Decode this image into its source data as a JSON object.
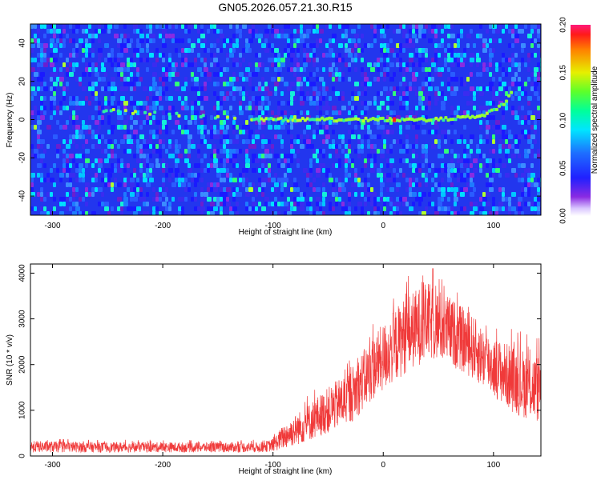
{
  "title": "GN05.2026.057.21.30.R15",
  "colors": {
    "snr_line": "#f03a3a",
    "ridge": "#8cff3a",
    "frame": "#000000"
  },
  "chart_data": [
    {
      "type": "heatmap",
      "name": "spectrogram",
      "xlabel": "Height of straight line (km)",
      "ylabel": "Frequency (Hz)",
      "xlim": [
        -320,
        143
      ],
      "ylim": [
        -50,
        50
      ],
      "xticks": [
        -300,
        -200,
        -100,
        0,
        100
      ],
      "yticks": [
        -40,
        -20,
        0,
        20,
        40
      ],
      "colorbar": {
        "label": "Normalized spectral amplitude",
        "range": [
          0,
          0.2
        ],
        "ticks": [
          "0.00",
          "0.05",
          "0.10",
          "0.15",
          "0.20"
        ]
      },
      "ridge": {
        "description_values_x": [
          -260,
          -200,
          -150,
          -100,
          -50,
          0,
          50,
          90,
          110,
          118
        ],
        "description_values_y": [
          5,
          3,
          1,
          0,
          0,
          0,
          0,
          2,
          8,
          16
        ]
      }
    },
    {
      "type": "line",
      "name": "snr",
      "xlabel": "Height of straight line (km)",
      "ylabel": "SNR (10 * v/v)",
      "xlim": [
        -320,
        143
      ],
      "ylim": [
        0,
        4200
      ],
      "xticks": [
        -300,
        -200,
        -100,
        0,
        100
      ],
      "yticks": [
        0,
        1000,
        2000,
        3000,
        4000
      ],
      "envelope": {
        "x": [
          -320,
          -250,
          -150,
          -110,
          -100,
          -90,
          -70,
          -50,
          -30,
          -10,
          0,
          20,
          40,
          60,
          80,
          100,
          120,
          143
        ],
        "lower": [
          80,
          80,
          80,
          80,
          100,
          150,
          300,
          500,
          700,
          1200,
          1400,
          1800,
          2100,
          2000,
          1700,
          1300,
          900,
          700
        ],
        "upper": [
          330,
          300,
          300,
          300,
          380,
          700,
          1100,
          1500,
          1900,
          2600,
          2900,
          3500,
          3800,
          3500,
          3100,
          2600,
          2400,
          2200
        ],
        "peak": [
          45,
          4100
        ]
      }
    }
  ]
}
